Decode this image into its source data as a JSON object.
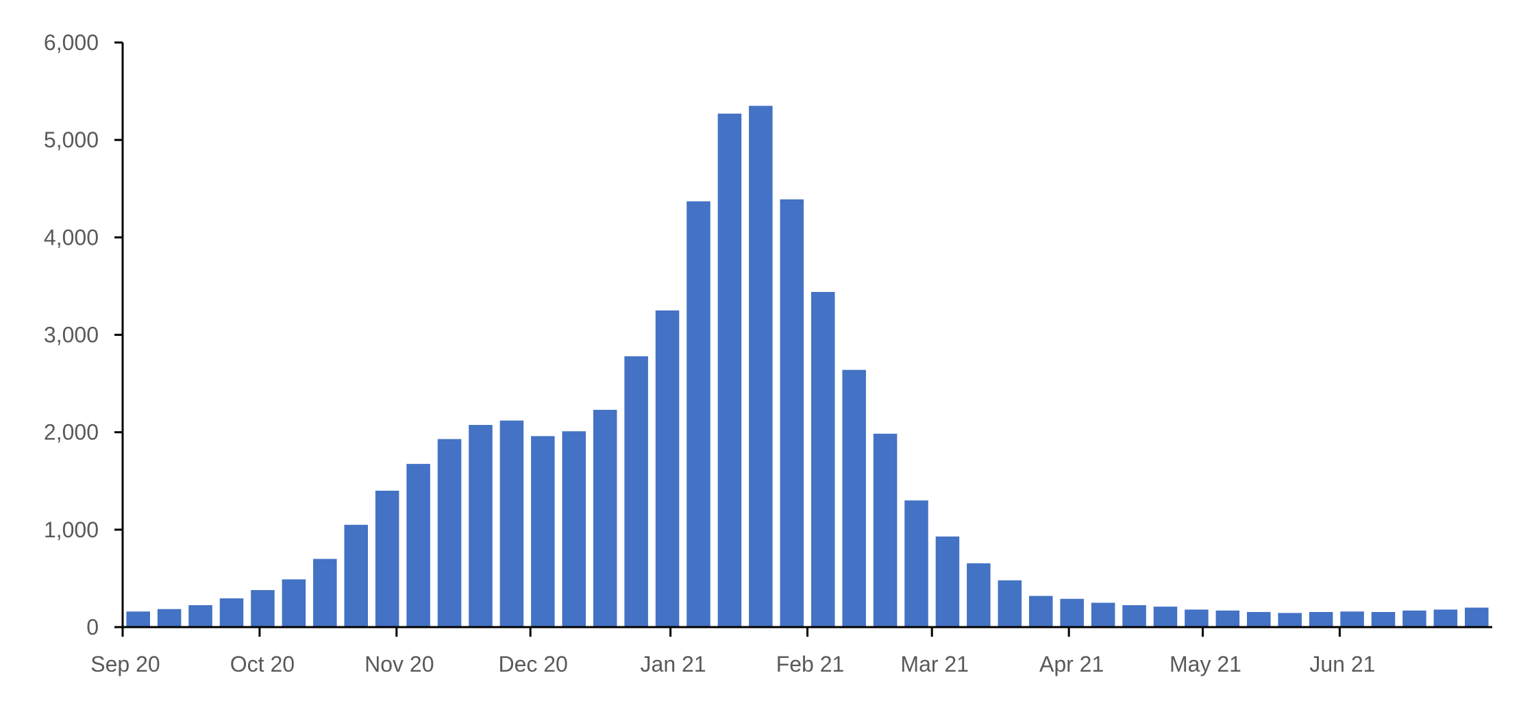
{
  "chart_data": {
    "type": "bar",
    "title": "",
    "xlabel": "",
    "ylabel": "",
    "ylim": [
      0,
      6000
    ],
    "yticks": [
      0,
      1000,
      2000,
      3000,
      4000,
      5000,
      6000
    ],
    "ytick_labels": [
      "0",
      "1,000",
      "2,000",
      "3,000",
      "4,000",
      "5,000",
      "6,000"
    ],
    "x_month_labels": [
      {
        "label": "Sep 20",
        "index": 0
      },
      {
        "label": "Oct 20",
        "index": 4.4
      },
      {
        "label": "Nov 20",
        "index": 8.8
      },
      {
        "label": "Dec 20",
        "index": 13.1
      },
      {
        "label": "Jan 21",
        "index": 17.6
      },
      {
        "label": "Feb 21",
        "index": 22.0
      },
      {
        "label": "Mar 21",
        "index": 26.0
      },
      {
        "label": "Apr 21",
        "index": 30.4
      },
      {
        "label": "May 21",
        "index": 34.7
      },
      {
        "label": "Jun 21",
        "index": 39.1
      }
    ],
    "values": [
      160,
      185,
      225,
      295,
      380,
      490,
      700,
      1050,
      1400,
      1675,
      1930,
      2075,
      2120,
      1960,
      2010,
      2230,
      2780,
      3250,
      4370,
      5270,
      5350,
      4390,
      3440,
      2640,
      1985,
      1300,
      930,
      655,
      480,
      320,
      290,
      250,
      225,
      210,
      180,
      170,
      155,
      145,
      155,
      160,
      155,
      170,
      180,
      200
    ],
    "bar_color": "#4472C4",
    "grid": false,
    "legend": "none"
  }
}
